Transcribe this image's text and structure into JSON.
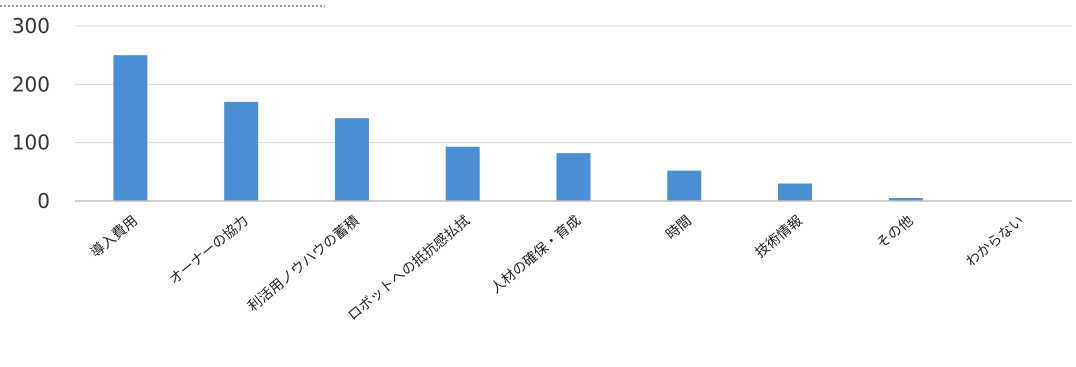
{
  "chart_data": {
    "type": "bar",
    "categories": [
      "導入費用",
      "オーナーの協力",
      "利活用ノウハウの蓄積",
      "ロボットへの抵抗感払拭",
      "人材の確保・育成",
      "時間",
      "技術情報",
      "その他",
      "わからない"
    ],
    "values": [
      250,
      170,
      142,
      93,
      82,
      52,
      30,
      5,
      0
    ],
    "title": "",
    "xlabel": "",
    "ylabel": "",
    "ylim": [
      0,
      300
    ],
    "yticks": [
      0,
      100,
      200,
      300
    ],
    "grid": true,
    "legend": "none",
    "bar_color": "#4a8fd4",
    "grid_color": "#d9d9d9"
  }
}
